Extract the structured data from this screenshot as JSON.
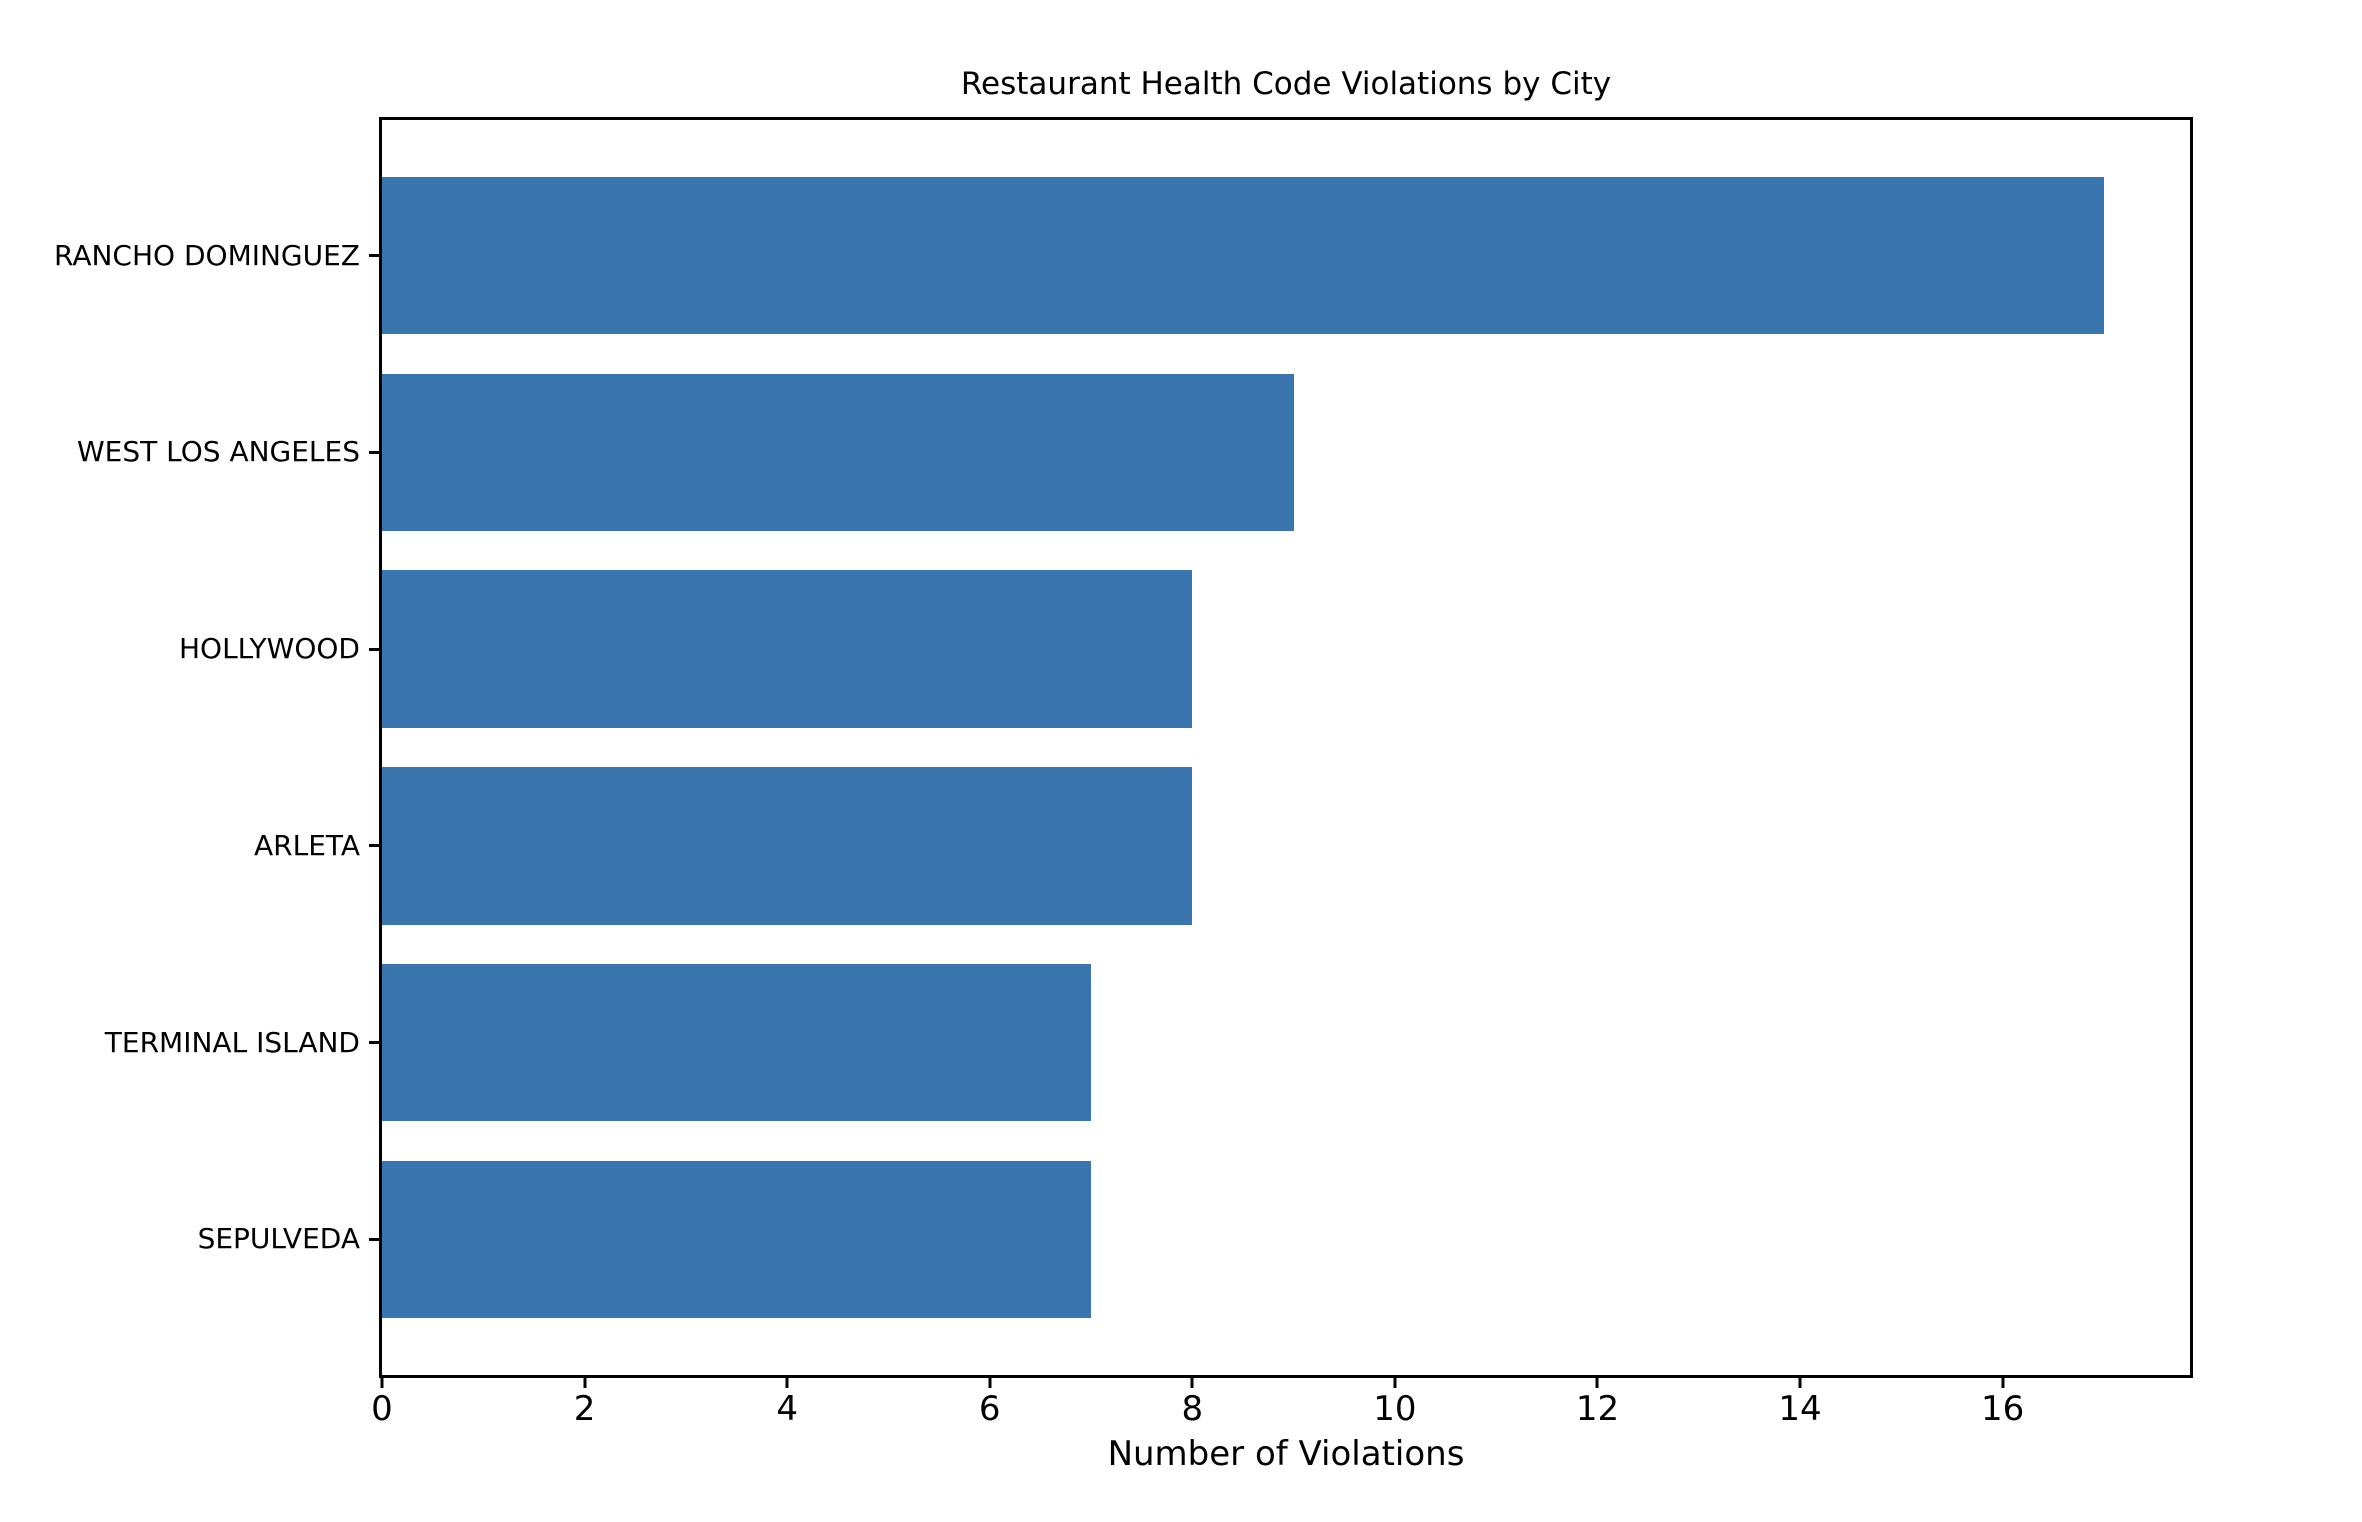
{
  "chart_data": {
    "type": "bar",
    "orientation": "horizontal",
    "title": "Restaurant Health Code Violations by City",
    "xlabel": "Number of Violations",
    "ylabel": "",
    "categories": [
      "RANCHO DOMINGUEZ",
      "WEST LOS ANGELES",
      "HOLLYWOOD",
      "ARLETA",
      "TERMINAL ISLAND",
      "SEPULVEDA"
    ],
    "values": [
      17,
      9,
      8,
      8,
      7,
      7
    ],
    "xticks": [
      0,
      2,
      4,
      6,
      8,
      10,
      12,
      14,
      16
    ],
    "xlim": [
      0,
      17.85
    ],
    "bar_relative_height": 0.8,
    "grid": false,
    "legend": null,
    "colors": {
      "bar": "#3B75AF",
      "axis": "#000000",
      "text": "#000000",
      "background": "#FFFFFF"
    }
  }
}
